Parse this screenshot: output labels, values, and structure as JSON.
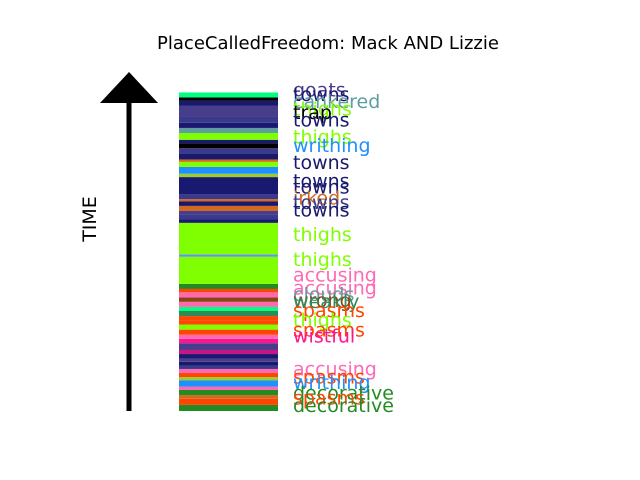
{
  "chart_data": {
    "type": "bar",
    "title": "PlaceCalledFreedom: Mack AND Lizzie",
    "ylabel": "TIME",
    "ylim": [
      0,
      1
    ],
    "grid": false,
    "legend": "none",
    "segments": [
      {
        "y0": 0.0,
        "y1": 0.018,
        "color": "#228b22"
      },
      {
        "y0": 0.018,
        "y1": 0.036,
        "color": "#ff4500"
      },
      {
        "y0": 0.036,
        "y1": 0.047,
        "color": "#d2691e"
      },
      {
        "y0": 0.047,
        "y1": 0.062,
        "color": "#228b22"
      },
      {
        "y0": 0.062,
        "y1": 0.072,
        "color": "#ff69b4"
      },
      {
        "y0": 0.072,
        "y1": 0.09,
        "color": "#1e90ff"
      },
      {
        "y0": 0.09,
        "y1": 0.1,
        "color": "#9acd32"
      },
      {
        "y0": 0.1,
        "y1": 0.112,
        "color": "#ff4500"
      },
      {
        "y0": 0.112,
        "y1": 0.124,
        "color": "#ff69b4"
      },
      {
        "y0": 0.124,
        "y1": 0.134,
        "color": "#3a3a8c"
      },
      {
        "y0": 0.134,
        "y1": 0.145,
        "color": "#191970"
      },
      {
        "y0": 0.145,
        "y1": 0.155,
        "color": "#483d8b"
      },
      {
        "y0": 0.155,
        "y1": 0.168,
        "color": "#191970"
      },
      {
        "y0": 0.168,
        "y1": 0.18,
        "color": "#c71585"
      },
      {
        "y0": 0.18,
        "y1": 0.2,
        "color": "#483d8b"
      },
      {
        "y0": 0.2,
        "y1": 0.213,
        "color": "#ff1493"
      },
      {
        "y0": 0.213,
        "y1": 0.225,
        "color": "#ff69b4"
      },
      {
        "y0": 0.225,
        "y1": 0.24,
        "color": "#ff4500"
      },
      {
        "y0": 0.24,
        "y1": 0.255,
        "color": "#7fff00"
      },
      {
        "y0": 0.255,
        "y1": 0.268,
        "color": "#ff4500"
      },
      {
        "y0": 0.268,
        "y1": 0.28,
        "color": "#ff4500"
      },
      {
        "y0": 0.28,
        "y1": 0.295,
        "color": "#2e8b57"
      },
      {
        "y0": 0.295,
        "y1": 0.307,
        "color": "#00ff7f"
      },
      {
        "y0": 0.307,
        "y1": 0.322,
        "color": "#ff69b4"
      },
      {
        "y0": 0.322,
        "y1": 0.335,
        "color": "#8b4513"
      },
      {
        "y0": 0.335,
        "y1": 0.35,
        "color": "#ff69b4"
      },
      {
        "y0": 0.35,
        "y1": 0.36,
        "color": "#ff4500"
      },
      {
        "y0": 0.36,
        "y1": 0.375,
        "color": "#228b22"
      },
      {
        "y0": 0.375,
        "y1": 0.455,
        "color": "#7fff00"
      },
      {
        "y0": 0.455,
        "y1": 0.462,
        "color": "#6495ed"
      },
      {
        "y0": 0.462,
        "y1": 0.555,
        "color": "#7fff00"
      },
      {
        "y0": 0.555,
        "y1": 0.565,
        "color": "#191970"
      },
      {
        "y0": 0.565,
        "y1": 0.58,
        "color": "#3a3a8c"
      },
      {
        "y0": 0.58,
        "y1": 0.59,
        "color": "#483d8b"
      },
      {
        "y0": 0.59,
        "y1": 0.605,
        "color": "#d2691e"
      },
      {
        "y0": 0.605,
        "y1": 0.618,
        "color": "#191970"
      },
      {
        "y0": 0.618,
        "y1": 0.625,
        "color": "#d2691e"
      },
      {
        "y0": 0.625,
        "y1": 0.64,
        "color": "#3a3a8c"
      },
      {
        "y0": 0.64,
        "y1": 0.69,
        "color": "#191970"
      },
      {
        "y0": 0.69,
        "y1": 0.7,
        "color": "#9acd32"
      },
      {
        "y0": 0.7,
        "y1": 0.72,
        "color": "#1e90ff"
      },
      {
        "y0": 0.72,
        "y1": 0.735,
        "color": "#7fff00"
      },
      {
        "y0": 0.735,
        "y1": 0.742,
        "color": "#d2691e"
      },
      {
        "y0": 0.742,
        "y1": 0.76,
        "color": "#191970"
      },
      {
        "y0": 0.76,
        "y1": 0.775,
        "color": "#3a3a8c"
      },
      {
        "y0": 0.775,
        "y1": 0.79,
        "color": "#000000"
      },
      {
        "y0": 0.79,
        "y1": 0.8,
        "color": "#191970"
      },
      {
        "y0": 0.8,
        "y1": 0.82,
        "color": "#7fff00"
      },
      {
        "y0": 0.82,
        "y1": 0.835,
        "color": "#5f9ea0"
      },
      {
        "y0": 0.835,
        "y1": 0.85,
        "color": "#191970"
      },
      {
        "y0": 0.85,
        "y1": 0.87,
        "color": "#3a3a8c"
      },
      {
        "y0": 0.87,
        "y1": 0.9,
        "color": "#483d8b"
      },
      {
        "y0": 0.9,
        "y1": 0.915,
        "color": "#191970"
      },
      {
        "y0": 0.915,
        "y1": 0.925,
        "color": "#000000"
      },
      {
        "y0": 0.925,
        "y1": 0.94,
        "color": "#00ff7f"
      },
      {
        "y0": 0.94,
        "y1": 0.95,
        "color": "#ffffff"
      }
    ],
    "labels": [
      {
        "text": "goats",
        "pos": 0.948,
        "color": "#483d8b"
      },
      {
        "text": "towns",
        "pos": 0.935,
        "color": "#191970"
      },
      {
        "text": "cankered",
        "pos": 0.915,
        "color": "#5f9ea0"
      },
      {
        "text": "thighs",
        "pos": 0.893,
        "color": "#7fff00"
      },
      {
        "text": "trap",
        "pos": 0.882,
        "color": "#000000"
      },
      {
        "text": "towns",
        "pos": 0.86,
        "color": "#191970"
      },
      {
        "text": "thighs",
        "pos": 0.81,
        "color": "#7fff00"
      },
      {
        "text": "writhing",
        "pos": 0.785,
        "color": "#1e90ff"
      },
      {
        "text": "towns",
        "pos": 0.735,
        "color": "#191970"
      },
      {
        "text": "towns",
        "pos": 0.68,
        "color": "#191970"
      },
      {
        "text": "towns",
        "pos": 0.662,
        "color": "#191970"
      },
      {
        "text": "irked",
        "pos": 0.63,
        "color": "#d2691e"
      },
      {
        "text": "towns",
        "pos": 0.616,
        "color": "#3a3a8c"
      },
      {
        "text": "towns",
        "pos": 0.595,
        "color": "#191970"
      },
      {
        "text": "thighs",
        "pos": 0.522,
        "color": "#7fff00"
      },
      {
        "text": "thighs",
        "pos": 0.448,
        "color": "#7fff00"
      },
      {
        "text": "accusing",
        "pos": 0.402,
        "color": "#ff69b4"
      },
      {
        "text": "accusing",
        "pos": 0.365,
        "color": "#ff69b4"
      },
      {
        "text": "clouds",
        "pos": 0.345,
        "color": "#5f9ea0"
      },
      {
        "text": "wrong",
        "pos": 0.328,
        "color": "#8b4513"
      },
      {
        "text": "weakly",
        "pos": 0.325,
        "color": "#2e8b57"
      },
      {
        "text": "spasms",
        "pos": 0.298,
        "color": "#ff4500"
      },
      {
        "text": "thighs",
        "pos": 0.27,
        "color": "#7fff00"
      },
      {
        "text": "spasms",
        "pos": 0.24,
        "color": "#ff4500"
      },
      {
        "text": "wistful",
        "pos": 0.222,
        "color": "#ff1493"
      },
      {
        "text": "accusing",
        "pos": 0.125,
        "color": "#ff69b4"
      },
      {
        "text": "spasms",
        "pos": 0.102,
        "color": "#ff4500"
      },
      {
        "text": "writhing",
        "pos": 0.085,
        "color": "#1e90ff"
      },
      {
        "text": "decorative",
        "pos": 0.055,
        "color": "#228b22"
      },
      {
        "text": "spasms",
        "pos": 0.04,
        "color": "#ff4500"
      },
      {
        "text": "decorative",
        "pos": 0.018,
        "color": "#228b22"
      }
    ]
  }
}
